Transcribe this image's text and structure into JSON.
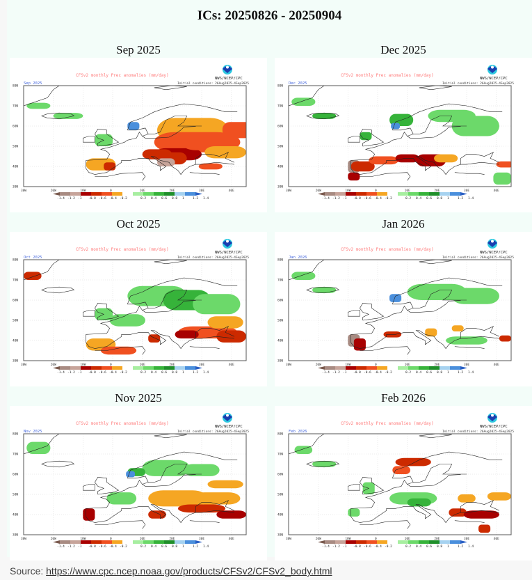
{
  "title": "ICs: 20250826 - 20250904",
  "map_common": {
    "header": "CFSv2 monthly Prec anomalies (mm/day)",
    "org": "NWS/NCEP/CPC",
    "initial_conditions": "Initial conditions: 26Aug2025-4Sep2025",
    "lat_ticks": [
      "80N",
      "70N",
      "60N",
      "50N",
      "40N",
      "30N"
    ],
    "lon_ticks": [
      "30W",
      "20W",
      "10W",
      "0",
      "10E",
      "20E",
      "30E",
      "40E"
    ],
    "colorbar_labels": [
      "-1.4",
      "-1.2",
      "-1",
      "-0.8",
      "-0.6",
      "-0.4",
      "-0.2",
      "0.2",
      "0.4",
      "0.6",
      "0.8",
      "1",
      "1.2",
      "1.4"
    ],
    "colorbar_colors": [
      "#7a5a4e",
      "#a88b82",
      "#c7a49a",
      "#a80000",
      "#cc2a00",
      "#f05020",
      "#f5a623",
      "#ffffff",
      "#a7eea0",
      "#6cd96a",
      "#36b33a",
      "#1f8f2a",
      "#a6d2f0",
      "#4a8fdc",
      "#2a5fc4"
    ]
  },
  "panels": [
    {
      "title": "Sep 2025",
      "month_label": "Sep 2025",
      "pattern": "dry-east"
    },
    {
      "title": "Dec 2025",
      "month_label": "Dec 2025",
      "pattern": "dry-south"
    },
    {
      "title": "Oct 2025",
      "month_label": "Oct 2025",
      "pattern": "wet-north-dry-southeast"
    },
    {
      "title": "Jan 2026",
      "month_label": "Jan 2026",
      "pattern": "wet-north-mixed"
    },
    {
      "title": "Nov 2025",
      "month_label": "Nov 2025",
      "pattern": "wet-north-dry-balkans"
    },
    {
      "title": "Feb 2026",
      "month_label": "Feb 2026",
      "pattern": "wet-center-dry-norway"
    }
  ],
  "source": {
    "label": "Source:",
    "url": "https://www.cpc.ncep.noaa.gov/products/CFSv2/CFSv2_body.html"
  }
}
